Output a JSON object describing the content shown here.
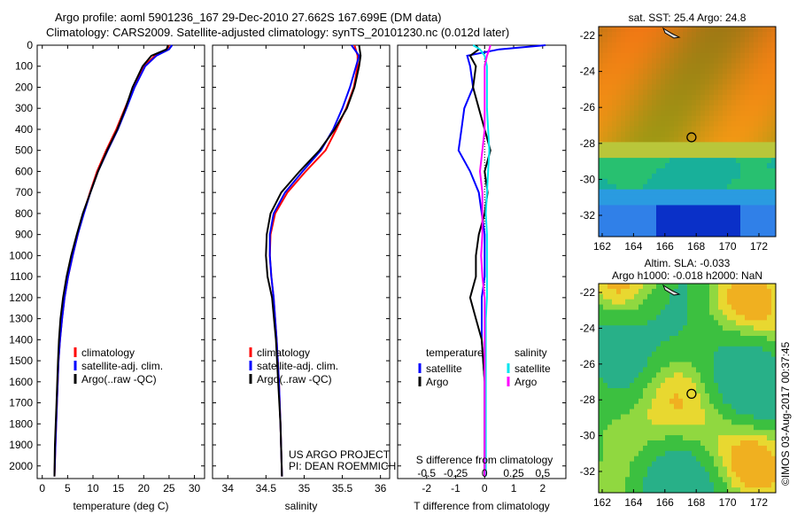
{
  "title_line1": "Argo profile: aoml 5901236_167 29-Dec-2010 27.662S 167.699E (DM data)",
  "title_line2": "Climatology: CARS2009. Satellite-adjusted climatology: synTS_20101230.nc (0.012d later)",
  "colors": {
    "climatology": "#ff0000",
    "satellite": "#0000ff",
    "argo": "#000000",
    "sal_satellite": "#00e5ee",
    "sal_argo": "#ff00ff"
  },
  "chart_data": [
    {
      "type": "line",
      "id": "temperature",
      "xlabel": "temperature (deg C)",
      "xlim": [
        -1,
        32
      ],
      "ylim": [
        2060,
        0
      ],
      "xticks": [
        0,
        5,
        10,
        15,
        20,
        25,
        30
      ],
      "yticks": [
        0,
        100,
        200,
        300,
        400,
        500,
        600,
        700,
        800,
        900,
        1000,
        1100,
        1200,
        1300,
        1400,
        1500,
        1600,
        1700,
        1800,
        1900,
        2000
      ],
      "depth": [
        0,
        20,
        50,
        100,
        200,
        300,
        400,
        500,
        600,
        700,
        800,
        900,
        1000,
        1100,
        1200,
        1300,
        1400,
        1500,
        1700,
        1900,
        2050
      ],
      "series": [
        {
          "name": "climatology",
          "values": [
            25.0,
            24.6,
            22.2,
            20.0,
            18.0,
            16.3,
            14.6,
            12.6,
            10.8,
            9.4,
            8.1,
            7.0,
            6.0,
            5.1,
            4.4,
            3.9,
            3.5,
            3.2,
            2.9,
            2.6,
            2.4
          ]
        },
        {
          "name": "satellite-adj. clim.",
          "values": [
            25.6,
            25.0,
            22.5,
            20.3,
            18.2,
            16.6,
            14.9,
            12.9,
            11.0,
            9.5,
            8.2,
            7.0,
            6.0,
            5.1,
            4.4,
            3.9,
            3.5,
            3.2,
            2.9,
            2.6,
            2.4
          ]
        },
        {
          "name": "Argo(..raw -QC)",
          "values": [
            24.8,
            24.5,
            21.5,
            19.8,
            17.8,
            16.4,
            14.8,
            12.8,
            11.0,
            9.5,
            8.0,
            6.8,
            5.7,
            4.8,
            4.1,
            3.6,
            3.3,
            3.1,
            2.8,
            2.5,
            2.4
          ]
        }
      ],
      "legend": [
        "climatology",
        "satellite-adj. clim.",
        "Argo(..raw -QC)"
      ]
    },
    {
      "type": "line",
      "id": "salinity",
      "xlabel": "salinity",
      "xlim": [
        33.8,
        36.12
      ],
      "ylim": [
        2060,
        0
      ],
      "xticks": [
        34,
        34.5,
        35,
        35.5,
        36
      ],
      "depth": [
        0,
        50,
        100,
        200,
        300,
        400,
        500,
        600,
        700,
        800,
        900,
        1000,
        1100,
        1200,
        1400,
        1600,
        1800,
        2050
      ],
      "series": [
        {
          "name": "climatology",
          "values": [
            35.66,
            35.7,
            35.7,
            35.65,
            35.55,
            35.42,
            35.28,
            35.02,
            34.78,
            34.62,
            34.56,
            34.55,
            34.57,
            34.6,
            34.64,
            34.67,
            34.69,
            34.71
          ]
        },
        {
          "name": "satellite-adj. clim.",
          "values": [
            35.62,
            35.72,
            35.68,
            35.6,
            35.5,
            35.38,
            35.22,
            34.98,
            34.75,
            34.6,
            34.55,
            34.55,
            34.57,
            34.6,
            34.64,
            34.67,
            34.69,
            34.71
          ]
        },
        {
          "name": "Argo(..raw -QC)",
          "values": [
            35.72,
            35.74,
            35.72,
            35.66,
            35.56,
            35.4,
            35.2,
            34.94,
            34.7,
            34.56,
            34.51,
            34.5,
            34.52,
            34.58,
            34.63,
            34.66,
            34.69,
            34.71
          ]
        }
      ],
      "legend": [
        "climatology",
        "satellite-adj. clim.",
        "Argo(..raw -QC)"
      ],
      "annotation": [
        "US ARGO PROJECT",
        "PI: DEAN ROEMMICH"
      ]
    },
    {
      "type": "line",
      "id": "differences",
      "xlabel": "T difference from climatology",
      "x2label": "S difference from climatology",
      "xlim": [
        -3.0,
        2.8
      ],
      "xticks": [
        -2,
        -1,
        0,
        1,
        2
      ],
      "x2ticks": [
        -0.5,
        -0.25,
        0,
        0.25,
        0.5
      ],
      "x2ticklabels": [
        "-0.5",
        "-0.25",
        "0",
        "0.25",
        "0.5"
      ],
      "ylim": [
        2060,
        0
      ],
      "depth": [
        0,
        20,
        50,
        100,
        200,
        300,
        400,
        500,
        600,
        700,
        800,
        900,
        1000,
        1100,
        1200,
        1300,
        1400,
        1600,
        1800,
        2050
      ],
      "series": [
        {
          "name": "temperature satellite",
          "values": [
            2.1,
            0.5,
            -0.6,
            -0.5,
            -0.4,
            -0.7,
            -0.8,
            -0.9,
            -0.5,
            -0.2,
            -0.1,
            0,
            0,
            0,
            -0.1,
            -0.1,
            -0.1,
            0,
            0,
            0
          ]
        },
        {
          "name": "temperature Argo",
          "values": [
            -0.3,
            -0.2,
            -0.5,
            -0.3,
            -0.4,
            -0.2,
            0,
            0.2,
            0,
            0.1,
            0,
            -0.2,
            -0.3,
            -0.3,
            -0.5,
            -0.3,
            -0.1,
            0,
            0,
            0
          ]
        },
        {
          "name": "salinity satellite",
          "values": [
            -0.1,
            -0.04,
            0,
            0.02,
            0.02,
            0.02,
            0.03,
            0.04,
            0.03,
            0.02,
            0.01,
            0.02,
            0.02,
            0.02,
            0.02,
            0.01,
            0.01,
            0.01,
            0.01,
            0.01
          ]
        },
        {
          "name": "salinity Argo",
          "values": [
            0.05,
            0.04,
            0.02,
            0.0,
            0.0,
            0.0,
            0.0,
            -0.02,
            -0.04,
            -0.02,
            -0.02,
            -0.02,
            -0.03,
            -0.02,
            0,
            0,
            0,
            0,
            0,
            0
          ]
        }
      ],
      "legend": {
        "temperature_header": "temperature",
        "salinity_header": "salinity",
        "items": [
          "satellite",
          "Argo",
          "satellite",
          "Argo"
        ]
      }
    },
    {
      "type": "heatmap",
      "id": "sst_map",
      "title": "sat. SST: 25.4  Argo: 24.8",
      "xticks": [
        162,
        164,
        166,
        168,
        170,
        172
      ],
      "yticks": [
        -22,
        -24,
        -26,
        -28,
        -30,
        -32
      ],
      "marker": {
        "lon": 167.699,
        "lat": -27.662
      }
    },
    {
      "type": "heatmap",
      "id": "sla_map",
      "title_line1": "Altim. SLA: -0.033",
      "title_line2": "Argo h1000: -0.018 h2000: NaN",
      "xticks": [
        162,
        164,
        166,
        168,
        170,
        172
      ],
      "yticks": [
        -22,
        -24,
        -26,
        -28,
        -30,
        -32
      ],
      "marker": {
        "lon": 167.699,
        "lat": -27.662
      }
    }
  ],
  "stamp": "©IMOS 03-Aug-2017 00:37:45"
}
